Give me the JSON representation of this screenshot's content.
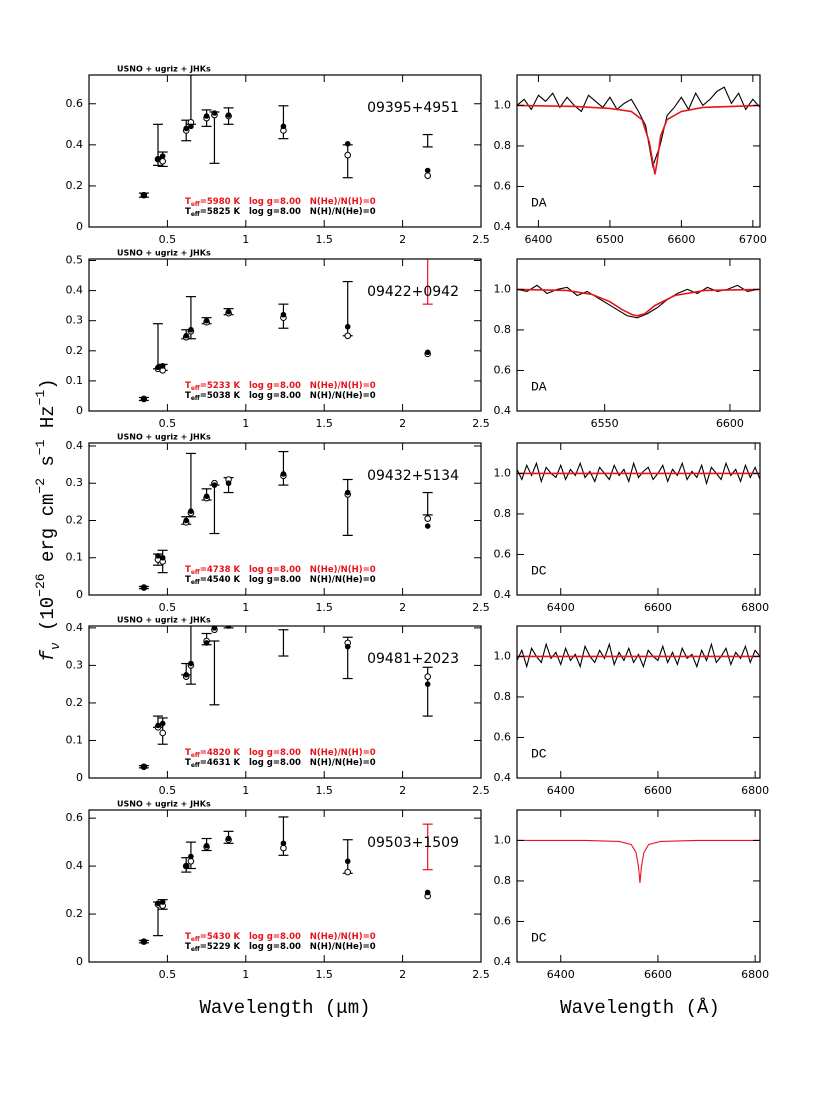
{
  "ylabel": [
    {
      "text": "f",
      "style": "italic"
    },
    {
      "text": "ν",
      "shift": "sub",
      "style": "italic"
    },
    {
      "text": " (10"
    },
    {
      "text": "−26",
      "shift": "super"
    },
    {
      "text": " erg cm"
    },
    {
      "text": "−2",
      "shift": "super"
    },
    {
      "text": " s"
    },
    {
      "text": "−1",
      "shift": "super"
    },
    {
      "text": " Hz"
    },
    {
      "text": "−1",
      "shift": "super"
    },
    {
      "text": ")"
    }
  ],
  "xlabel_sed": "Wavelength (μm)",
  "xlabel_spec": "Wavelength (Å)",
  "chart_data": [
    {
      "type": "errorbar",
      "header": "USNO + ugriz + JHKs",
      "name": "09395+4951",
      "x": [
        0.35,
        0.44,
        0.47,
        0.62,
        0.65,
        0.75,
        0.8,
        0.89,
        1.24,
        1.65,
        2.16
      ],
      "values": [
        0.155,
        0.4,
        0.33,
        0.47,
        0.62,
        0.53,
        0.435,
        0.54,
        0.51,
        0.32,
        0.42
      ],
      "errors": [
        0.01,
        0.1,
        0.035,
        0.05,
        0.12,
        0.04,
        0.125,
        0.04,
        0.08,
        0.08,
        0.03
      ],
      "error_colors": [
        "#000",
        "#000",
        "#000",
        "#000",
        "#000",
        "#000",
        "#000",
        "#000",
        "#000",
        "#000",
        "#000"
      ],
      "model_filled": [
        0.155,
        0.33,
        0.345,
        0.48,
        0.49,
        0.54,
        0.555,
        0.545,
        0.49,
        0.405,
        0.275
      ],
      "model_open": [
        0.155,
        0.33,
        0.32,
        0.47,
        0.51,
        0.53,
        0.545,
        0.54,
        0.47,
        0.35,
        0.25
      ],
      "fits": [
        {
          "prefix": "T",
          "sub": "eff",
          "text": "=5980 K   log g=8.00   N(He)/N(H)=0",
          "color": "#e8141c"
        },
        {
          "prefix": "T",
          "sub": "eff",
          "text": "=5825 K   log g=8.00   N(H)/N(He)=0",
          "color": "#000"
        }
      ],
      "xlim": [
        0,
        2.5
      ],
      "ylim": [
        0,
        0.74
      ],
      "xticks": [
        0.5,
        1,
        1.5,
        2,
        2.5
      ],
      "yticks": [
        0,
        0.2,
        0.4,
        0.6
      ]
    },
    {
      "type": "line",
      "label": "DA",
      "series": [
        {
          "color": "#000",
          "x": [
            6370,
            6380,
            6390,
            6400,
            6410,
            6420,
            6430,
            6440,
            6450,
            6460,
            6470,
            6480,
            6490,
            6500,
            6510,
            6520,
            6530,
            6540,
            6550,
            6560,
            6570,
            6580,
            6590,
            6600,
            6610,
            6620,
            6630,
            6640,
            6650,
            6660,
            6670,
            6680,
            6690,
            6700,
            6710
          ],
          "values": [
            1.0,
            1.03,
            0.98,
            1.05,
            1.02,
            1.06,
            0.99,
            1.04,
            1.0,
            0.97,
            1.05,
            1.02,
            0.99,
            1.04,
            0.98,
            1.01,
            1.03,
            0.97,
            0.9,
            0.7,
            0.8,
            0.95,
            0.99,
            1.04,
            0.98,
            1.06,
            1.0,
            1.03,
            1.07,
            1.09,
            1.01,
            1.06,
            0.98,
            1.03,
            0.99
          ]
        },
        {
          "color": "#e8141c",
          "x": [
            6370,
            6450,
            6500,
            6530,
            6545,
            6555,
            6560,
            6563,
            6566,
            6571,
            6580,
            6600,
            6630,
            6710
          ],
          "values": [
            1,
            0.995,
            0.985,
            0.97,
            0.93,
            0.82,
            0.72,
            0.66,
            0.72,
            0.85,
            0.93,
            0.97,
            0.99,
            1
          ]
        }
      ],
      "xlim": [
        6370,
        6710
      ],
      "ylim": [
        0.4,
        1.15
      ],
      "xticks": [
        6400,
        6500,
        6600,
        6700
      ],
      "yticks": [
        0.4,
        0.6,
        0.8,
        {
          "value": 1,
          "label": "1.0"
        }
      ]
    },
    {
      "type": "errorbar",
      "header": "USNO + ugriz + JHKs",
      "name": "09422+0942",
      "x": [
        0.35,
        0.44,
        0.47,
        0.62,
        0.65,
        0.75,
        0.89,
        1.24,
        1.65,
        2.16
      ],
      "values": [
        0.04,
        0.215,
        0.145,
        0.255,
        0.31,
        0.3,
        0.33,
        0.315,
        0.34,
        0.445
      ],
      "errors": [
        0.005,
        0.075,
        0.01,
        0.015,
        0.07,
        0.01,
        0.01,
        0.04,
        0.09,
        0.09
      ],
      "error_colors": [
        "#000",
        "#000",
        "#000",
        "#000",
        "#000",
        "#000",
        "#000",
        "#000",
        "#000",
        "#e8141c"
      ],
      "model_filled": [
        0.04,
        0.145,
        0.15,
        0.25,
        0.27,
        0.3,
        0.33,
        0.32,
        0.28,
        0.195
      ],
      "model_open": [
        0.04,
        0.14,
        0.135,
        0.245,
        0.265,
        0.295,
        0.325,
        0.31,
        0.25,
        0.19
      ],
      "fits": [
        {
          "prefix": "T",
          "sub": "eff",
          "text": "=5233 K   log g=8.00   N(He)/N(H)=0",
          "color": "#e8141c"
        },
        {
          "prefix": "T",
          "sub": "eff",
          "text": "=5038 K   log g=8.00   N(H)/N(He)=0",
          "color": "#000"
        }
      ],
      "xlim": [
        0,
        2.5
      ],
      "ylim": [
        0,
        0.505
      ],
      "xticks": [
        0.5,
        1,
        1.5,
        2,
        2.5
      ],
      "yticks": [
        0,
        0.1,
        0.2,
        0.3,
        0.4,
        0.5
      ]
    },
    {
      "type": "line",
      "label": "DA",
      "series": [
        {
          "color": "#000",
          "x": [
            6515,
            6519,
            6523,
            6527,
            6531,
            6535,
            6539,
            6543,
            6547,
            6551,
            6555,
            6559,
            6563,
            6567,
            6571,
            6575,
            6579,
            6583,
            6587,
            6591,
            6595,
            6599,
            6603,
            6607,
            6611
          ],
          "values": [
            1.0,
            0.99,
            1.02,
            0.98,
            1.0,
            1.01,
            0.97,
            0.99,
            0.96,
            0.93,
            0.9,
            0.87,
            0.86,
            0.88,
            0.91,
            0.95,
            0.98,
            1.0,
            0.98,
            1.01,
            0.99,
            1.0,
            1.02,
            0.99,
            1.0
          ]
        },
        {
          "color": "#e8141c",
          "x": [
            6515,
            6535,
            6545,
            6552,
            6557,
            6561,
            6563,
            6566,
            6570,
            6578,
            6590,
            6612
          ],
          "values": [
            1,
            0.995,
            0.975,
            0.94,
            0.9,
            0.875,
            0.87,
            0.88,
            0.92,
            0.97,
            0.995,
            1
          ]
        }
      ],
      "xlim": [
        6515,
        6612
      ],
      "ylim": [
        0.4,
        1.15
      ],
      "xticks": [
        6550,
        6600
      ],
      "yticks": [
        0.4,
        0.6,
        0.8,
        {
          "value": 1,
          "label": "1.0"
        }
      ]
    },
    {
      "type": "errorbar",
      "header": "USNO + ugriz + JHKs",
      "name": "09432+5134",
      "x": [
        0.35,
        0.44,
        0.47,
        0.62,
        0.65,
        0.75,
        0.8,
        0.89,
        1.24,
        1.65,
        2.16
      ],
      "values": [
        0.02,
        0.095,
        0.09,
        0.2,
        0.295,
        0.27,
        0.23,
        0.295,
        0.34,
        0.235,
        0.245
      ],
      "errors": [
        0.003,
        0.015,
        0.03,
        0.01,
        0.085,
        0.015,
        0.065,
        0.02,
        0.045,
        0.075,
        0.03
      ],
      "error_colors": [
        "#000",
        "#000",
        "#000",
        "#000",
        "#000",
        "#000",
        "#000",
        "#000",
        "#000",
        "#000",
        "#000"
      ],
      "model_filled": [
        0.02,
        0.105,
        0.1,
        0.2,
        0.225,
        0.265,
        0.295,
        0.3,
        0.325,
        0.275,
        0.185
      ],
      "model_open": [
        0.02,
        0.095,
        0.09,
        0.195,
        0.22,
        0.26,
        0.3,
        0.31,
        0.32,
        0.27,
        0.205
      ],
      "fits": [
        {
          "prefix": "T",
          "sub": "eff",
          "text": "=4738 K   log g=8.00   N(He)/N(H)=0",
          "color": "#e8141c"
        },
        {
          "prefix": "T",
          "sub": "eff",
          "text": "=4540 K   log g=8.00   N(H)/N(He)=0",
          "color": "#000"
        }
      ],
      "xlim": [
        0,
        2.5
      ],
      "ylim": [
        0,
        0.408
      ],
      "xticks": [
        0.5,
        1,
        1.5,
        2,
        2.5
      ],
      "yticks": [
        0,
        0.1,
        0.2,
        0.3,
        0.4
      ]
    },
    {
      "type": "line",
      "label": "DC",
      "series": [
        {
          "color": "#000",
          "x": [
            6310,
            6320,
            6330,
            6340,
            6350,
            6360,
            6370,
            6380,
            6390,
            6400,
            6410,
            6420,
            6430,
            6440,
            6450,
            6460,
            6470,
            6480,
            6490,
            6500,
            6510,
            6520,
            6530,
            6540,
            6550,
            6560,
            6570,
            6580,
            6590,
            6600,
            6610,
            6620,
            6630,
            6640,
            6650,
            6660,
            6670,
            6680,
            6690,
            6700,
            6710,
            6720,
            6730,
            6740,
            6750,
            6760,
            6770,
            6780,
            6790,
            6800,
            6810
          ],
          "values": [
            1.02,
            0.97,
            1.04,
            0.99,
            1.05,
            0.96,
            1.03,
            1.0,
            0.98,
            1.04,
            0.97,
            1.02,
            0.99,
            1.05,
            0.98,
            1.01,
            0.96,
            1.03,
            1.0,
            0.97,
            1.04,
            0.99,
            1.02,
            0.96,
            1.05,
            0.98,
            1.01,
            1.03,
            0.97,
            1.0,
            1.04,
            0.96,
            1.02,
            0.99,
            1.05,
            0.97,
            1.01,
            0.98,
            1.04,
            0.95,
            1.03,
            1.0,
            0.97,
            1.05,
            0.99,
            1.02,
            0.96,
            1.04,
            0.98,
            1.03,
            0.97
          ]
        },
        {
          "color": "#e8141c",
          "x": [
            6310,
            6810
          ],
          "values": [
            1,
            1
          ]
        }
      ],
      "xlim": [
        6310,
        6810
      ],
      "ylim": [
        0.4,
        1.15
      ],
      "xticks": [
        6400,
        6600,
        6800
      ],
      "yticks": [
        0.4,
        0.6,
        0.8,
        {
          "value": 1,
          "label": "1.0"
        }
      ]
    },
    {
      "type": "errorbar",
      "header": "USNO + ugriz + JHKs",
      "name": "09481+2023",
      "x": [
        0.35,
        0.44,
        0.47,
        0.62,
        0.65,
        0.75,
        0.8,
        0.89,
        1.24,
        1.65,
        2.16
      ],
      "values": [
        0.03,
        0.15,
        0.125,
        0.29,
        0.355,
        0.37,
        0.28,
        0.42,
        0.36,
        0.32,
        0.23
      ],
      "errors": [
        0.003,
        0.015,
        0.035,
        0.015,
        0.105,
        0.015,
        0.085,
        0.02,
        0.035,
        0.055,
        0.065
      ],
      "error_colors": [
        "#000",
        "#000",
        "#000",
        "#000",
        "#000",
        "#000",
        "#000",
        "#000",
        "#000",
        "#000",
        "#000"
      ],
      "model_filled": [
        0.03,
        0.14,
        0.145,
        0.275,
        0.305,
        0.36,
        0.4,
        0.405,
        0.42,
        0.35,
        0.25
      ],
      "model_open": [
        0.03,
        0.135,
        0.12,
        0.27,
        0.3,
        0.365,
        0.395,
        0.415,
        0.42,
        0.36,
        0.27
      ],
      "fits": [
        {
          "prefix": "T",
          "sub": "eff",
          "text": "=4820 K   log g=8.00   N(He)/N(H)=0",
          "color": "#e8141c"
        },
        {
          "prefix": "T",
          "sub": "eff",
          "text": "=4631 K   log g=8.00   N(H)/N(He)=0",
          "color": "#000"
        }
      ],
      "xlim": [
        0,
        2.5
      ],
      "ylim": [
        0,
        0.405
      ],
      "xticks": [
        0.5,
        1,
        1.5,
        2,
        2.5
      ],
      "yticks": [
        0,
        0.1,
        0.2,
        0.3,
        0.4
      ]
    },
    {
      "type": "line",
      "label": "DC",
      "series": [
        {
          "color": "#000",
          "x": [
            6310,
            6320,
            6330,
            6340,
            6350,
            6360,
            6370,
            6380,
            6390,
            6400,
            6410,
            6420,
            6430,
            6440,
            6450,
            6460,
            6470,
            6480,
            6490,
            6500,
            6510,
            6520,
            6530,
            6540,
            6550,
            6560,
            6570,
            6580,
            6590,
            6600,
            6610,
            6620,
            6630,
            6640,
            6650,
            6660,
            6670,
            6680,
            6690,
            6700,
            6710,
            6720,
            6730,
            6740,
            6750,
            6760,
            6770,
            6780,
            6790,
            6800,
            6810
          ],
          "values": [
            0.98,
            1.03,
            0.95,
            1.04,
            1.0,
            0.97,
            1.06,
            0.99,
            1.02,
            0.96,
            1.04,
            0.98,
            1.01,
            0.95,
            1.05,
            1.0,
            0.97,
            1.03,
            0.99,
            1.06,
            0.96,
            1.02,
            0.98,
            1.04,
            0.97,
            1.01,
            0.95,
            1.03,
            1.0,
            0.98,
            1.05,
            0.97,
            1.02,
            0.96,
            1.04,
            0.99,
            1.01,
            0.95,
            1.03,
            0.98,
            1.06,
            0.97,
            1.0,
            1.04,
            0.96,
            1.02,
            0.99,
            1.05,
            0.97,
            1.03,
            1.0
          ]
        },
        {
          "color": "#e8141c",
          "x": [
            6310,
            6810
          ],
          "values": [
            1,
            1
          ]
        }
      ],
      "xlim": [
        6310,
        6810
      ],
      "ylim": [
        0.4,
        1.15
      ],
      "xticks": [
        6400,
        6600,
        6800
      ],
      "yticks": [
        0.4,
        0.6,
        0.8,
        {
          "value": 1,
          "label": "1.0"
        }
      ]
    },
    {
      "type": "errorbar",
      "header": "USNO + ugriz + JHKs",
      "name": "09503+1509",
      "x": [
        0.35,
        0.44,
        0.47,
        0.62,
        0.65,
        0.75,
        0.89,
        1.24,
        1.65,
        2.16
      ],
      "values": [
        0.085,
        0.18,
        0.24,
        0.405,
        0.445,
        0.49,
        0.52,
        0.525,
        0.44,
        0.48
      ],
      "errors": [
        0.005,
        0.07,
        0.02,
        0.03,
        0.055,
        0.025,
        0.025,
        0.08,
        0.07,
        0.095
      ],
      "error_colors": [
        "#000",
        "#000",
        "#000",
        "#000",
        "#000",
        "#000",
        "#000",
        "#000",
        "#000",
        "#e8141c"
      ],
      "model_filled": [
        0.085,
        0.245,
        0.25,
        0.4,
        0.44,
        0.485,
        0.515,
        0.495,
        0.42,
        0.29
      ],
      "model_open": [
        0.085,
        0.24,
        0.235,
        0.4,
        0.42,
        0.48,
        0.51,
        0.475,
        0.375,
        0.275
      ],
      "fits": [
        {
          "prefix": "T",
          "sub": "eff",
          "text": "=5430 K   log g=8.00   N(He)/N(H)=0",
          "color": "#e8141c"
        },
        {
          "prefix": "T",
          "sub": "eff",
          "text": "=5229 K   log g=8.00   N(H)/N(He)=0",
          "color": "#000"
        }
      ],
      "xlim": [
        0,
        2.5
      ],
      "ylim": [
        0,
        0.634
      ],
      "xticks": [
        0.5,
        1,
        1.5,
        2,
        2.5
      ],
      "yticks": [
        0,
        0.2,
        0.4,
        0.6
      ]
    },
    {
      "type": "line",
      "label": "DC",
      "series": [
        {
          "color": "#e8141c",
          "x": [
            6310,
            6450,
            6520,
            6545,
            6555,
            6560,
            6563,
            6566,
            6571,
            6581,
            6606,
            6680,
            6810
          ],
          "values": [
            1,
            1,
            0.995,
            0.98,
            0.94,
            0.87,
            0.79,
            0.87,
            0.94,
            0.98,
            0.995,
            1,
            1
          ]
        }
      ],
      "xlim": [
        6310,
        6810
      ],
      "ylim": [
        0.4,
        1.15
      ],
      "xticks": [
        6400,
        6600,
        6800
      ],
      "yticks": [
        0.4,
        0.6,
        0.8,
        {
          "value": 1,
          "label": "1.0"
        }
      ]
    }
  ]
}
